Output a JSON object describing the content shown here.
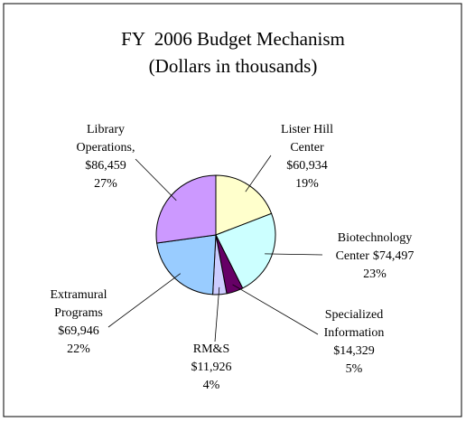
{
  "chart_data": {
    "type": "pie",
    "title": "FY  2006 Budget Mechanism",
    "subtitle": "(Dollars in thousands)",
    "categories": [
      [
        "Lister Hill",
        "Center"
      ],
      [
        "Biotechnology",
        "Center"
      ],
      [
        "Specialized",
        "Information"
      ],
      [
        "RM&S"
      ],
      [
        "Extramural",
        "Programs"
      ],
      [
        "Library",
        "Operations,"
      ]
    ],
    "values": [
      60934,
      74497,
      14329,
      11926,
      69946,
      86459
    ],
    "value_labels": [
      "$60,934",
      "$74,497",
      "$14,329",
      "$11,926",
      "$69,946",
      "$86,459"
    ],
    "percents": [
      19,
      23,
      5,
      4,
      22,
      27
    ],
    "percent_labels": [
      "19%",
      "23%",
      "5%",
      "4%",
      "22%",
      "27%"
    ],
    "colors": [
      "#ffffcc",
      "#ccffff",
      "#660066",
      "#ccccff",
      "#99ccff",
      "#cc99ff"
    ]
  }
}
